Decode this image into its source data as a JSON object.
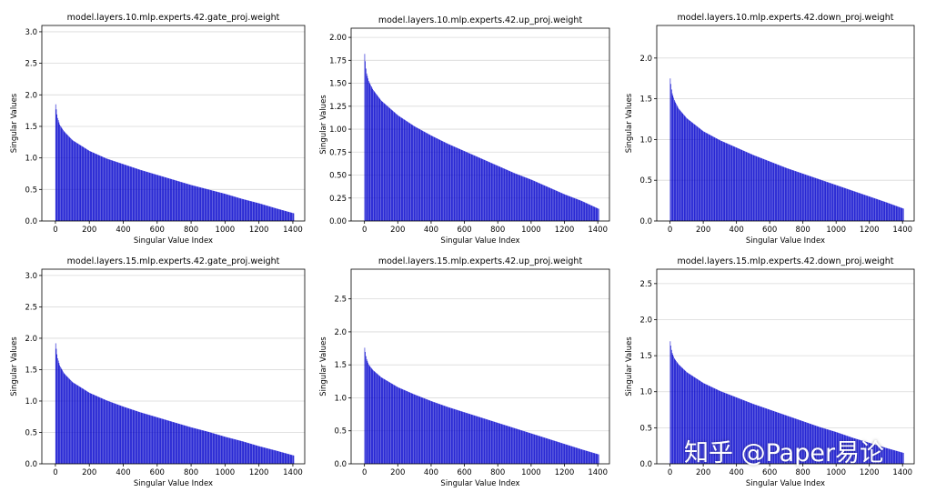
{
  "xlabel": "Singular Value Index",
  "ylabel": "Singular Values",
  "x_ticks": [
    0,
    200,
    400,
    600,
    800,
    1000,
    1200,
    1400
  ],
  "bar_color": "#0000cc",
  "grid_color": "#d9d9d9",
  "watermark": "知乎 @Paper易论",
  "chart_data": [
    {
      "type": "bar",
      "title": "model.layers.10.mlp.experts.42.gate_proj.weight",
      "xlabel": "Singular Value Index",
      "ylabel": "Singular Values",
      "xlim": [
        -80,
        1470
      ],
      "ylim": [
        0,
        3.1
      ],
      "y_ticks": [
        "0.0",
        "0.5",
        "1.0",
        "1.5",
        "2.0",
        "2.5",
        "3.0"
      ],
      "grid": "horizontal",
      "n": 1408,
      "x": [
        0,
        10,
        25,
        50,
        100,
        200,
        300,
        400,
        500,
        600,
        700,
        800,
        900,
        1000,
        1100,
        1200,
        1300,
        1407
      ],
      "values": [
        1.85,
        1.65,
        1.52,
        1.42,
        1.28,
        1.11,
        0.99,
        0.9,
        0.81,
        0.73,
        0.65,
        0.57,
        0.5,
        0.43,
        0.35,
        0.28,
        0.2,
        0.12
      ]
    },
    {
      "type": "bar",
      "title": "model.layers.10.mlp.experts.42.up_proj.weight",
      "xlabel": "Singular Value Index",
      "ylabel": "Singular Values",
      "xlim": [
        -80,
        1470
      ],
      "ylim": [
        0,
        2.1
      ],
      "y_ticks": [
        "0.00",
        "0.25",
        "0.50",
        "0.75",
        "1.00",
        "1.25",
        "1.50",
        "1.75",
        "2.00"
      ],
      "grid": "horizontal",
      "n": 1408,
      "x": [
        0,
        10,
        25,
        50,
        100,
        200,
        300,
        400,
        500,
        600,
        700,
        800,
        900,
        1000,
        1100,
        1200,
        1300,
        1407
      ],
      "values": [
        1.82,
        1.62,
        1.52,
        1.43,
        1.31,
        1.15,
        1.03,
        0.93,
        0.84,
        0.76,
        0.68,
        0.6,
        0.52,
        0.45,
        0.37,
        0.29,
        0.22,
        0.13
      ]
    },
    {
      "type": "bar",
      "title": "model.layers.10.mlp.experts.42.down_proj.weight",
      "xlabel": "Singular Value Index",
      "ylabel": "Singular Values",
      "xlim": [
        -80,
        1470
      ],
      "ylim": [
        0,
        2.4
      ],
      "y_ticks": [
        "0.0",
        "0.5",
        "1.0",
        "1.5",
        "2.0"
      ],
      "grid": "horizontal",
      "n": 1408,
      "x": [
        0,
        10,
        25,
        50,
        100,
        200,
        300,
        400,
        500,
        600,
        700,
        800,
        900,
        1000,
        1100,
        1200,
        1300,
        1407
      ],
      "values": [
        1.75,
        1.58,
        1.48,
        1.38,
        1.26,
        1.1,
        0.99,
        0.9,
        0.81,
        0.73,
        0.65,
        0.58,
        0.51,
        0.44,
        0.37,
        0.3,
        0.23,
        0.15
      ]
    },
    {
      "type": "bar",
      "title": "model.layers.15.mlp.experts.42.gate_proj.weight",
      "xlabel": "Singular Value Index",
      "ylabel": "Singular Values",
      "xlim": [
        -80,
        1470
      ],
      "ylim": [
        0,
        3.1
      ],
      "y_ticks": [
        "0.0",
        "0.5",
        "1.0",
        "1.5",
        "2.0",
        "2.5",
        "3.0"
      ],
      "grid": "horizontal",
      "n": 1408,
      "x": [
        0,
        10,
        25,
        50,
        100,
        200,
        300,
        400,
        500,
        600,
        700,
        800,
        900,
        1000,
        1100,
        1200,
        1300,
        1407
      ],
      "values": [
        1.92,
        1.7,
        1.56,
        1.44,
        1.3,
        1.13,
        1.01,
        0.91,
        0.82,
        0.74,
        0.66,
        0.58,
        0.51,
        0.43,
        0.36,
        0.28,
        0.21,
        0.13
      ]
    },
    {
      "type": "bar",
      "title": "model.layers.15.mlp.experts.42.up_proj.weight",
      "xlabel": "Singular Value Index",
      "ylabel": "Singular Values",
      "xlim": [
        -80,
        1470
      ],
      "ylim": [
        0,
        2.95
      ],
      "y_ticks": [
        "0.0",
        "0.5",
        "1.0",
        "1.5",
        "2.0",
        "2.5"
      ],
      "grid": "horizontal",
      "n": 1408,
      "x": [
        0,
        10,
        25,
        50,
        100,
        200,
        300,
        400,
        500,
        600,
        700,
        800,
        900,
        1000,
        1100,
        1200,
        1300,
        1407
      ],
      "values": [
        1.76,
        1.6,
        1.5,
        1.42,
        1.31,
        1.16,
        1.05,
        0.95,
        0.86,
        0.78,
        0.7,
        0.62,
        0.54,
        0.46,
        0.38,
        0.3,
        0.22,
        0.14
      ]
    },
    {
      "type": "bar",
      "title": "model.layers.15.mlp.experts.42.down_proj.weight",
      "xlabel": "Singular Value Index",
      "ylabel": "Singular Values",
      "xlim": [
        -80,
        1470
      ],
      "ylim": [
        0,
        2.7
      ],
      "y_ticks": [
        "0.0",
        "0.5",
        "1.0",
        "1.5",
        "2.0",
        "2.5"
      ],
      "grid": "horizontal",
      "n": 1408,
      "x": [
        0,
        10,
        25,
        50,
        100,
        200,
        300,
        400,
        500,
        600,
        700,
        800,
        900,
        1000,
        1100,
        1200,
        1300,
        1407
      ],
      "values": [
        1.7,
        1.55,
        1.46,
        1.38,
        1.27,
        1.12,
        1.01,
        0.92,
        0.83,
        0.75,
        0.67,
        0.59,
        0.51,
        0.44,
        0.36,
        0.29,
        0.22,
        0.15
      ]
    }
  ]
}
